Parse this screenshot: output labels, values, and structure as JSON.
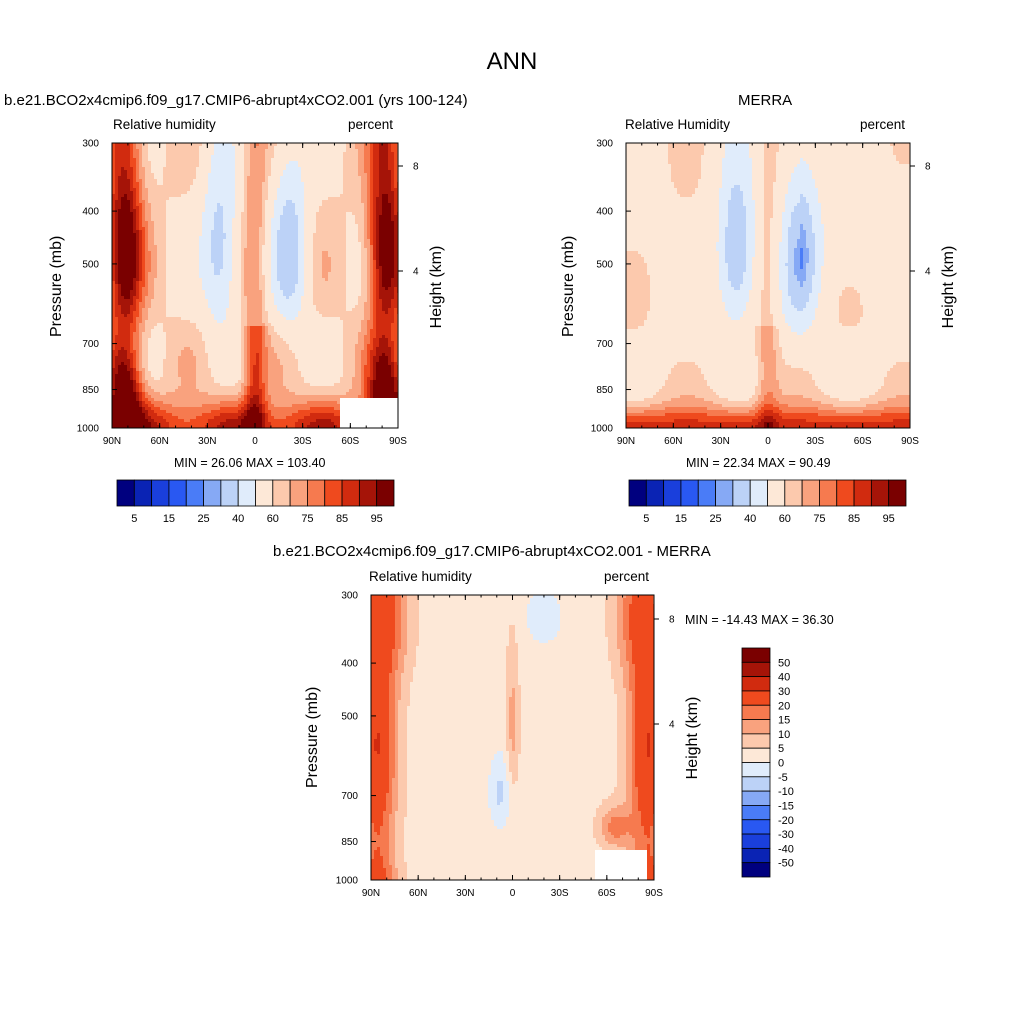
{
  "figure": {
    "title": "ANN"
  },
  "colors": {
    "levels15": [
      "#00007f",
      "#0a23b4",
      "#1a3fdc",
      "#2958f2",
      "#4a7cf7",
      "#86a9f5",
      "#bcd2f7",
      "#e0ecfb",
      "#fde8d7",
      "#fcc9ad",
      "#f9a27e",
      "#f67a4f",
      "#ef4a1e",
      "#d12b0f",
      "#a51408",
      "#7a0000"
    ],
    "levels_diff": [
      "#00007f",
      "#0a23b4",
      "#1a3fdc",
      "#2958f2",
      "#4a7cf7",
      "#86a9f5",
      "#bcd2f7",
      "#e0ecfb",
      "#fde8d7",
      "#fcc9ad",
      "#f9a27e",
      "#f67a4f",
      "#ef4a1e",
      "#d12b0f",
      "#a51408",
      "#7a0000"
    ]
  },
  "panels": [
    {
      "title": "b.e21.BCO2x4cmip6.f09_g17.CMIP6-abrupt4xCO2.001 (yrs 100-124)",
      "left_label": "Relative humidity",
      "right_label": "percent",
      "ylabel": "Pressure (mb)",
      "ylabel_right": "Height (km)",
      "min_max": "MIN =  26.06  MAX = 103.40",
      "colorbar_labels": [
        "5",
        "15",
        "25",
        "40",
        "60",
        "75",
        "85",
        "95"
      ]
    },
    {
      "title": "MERRA",
      "left_label": "Relative Humidity",
      "right_label": "percent",
      "ylabel": "Pressure (mb)",
      "ylabel_right": "Height (km)",
      "min_max": "MIN =  22.34  MAX =  90.49",
      "colorbar_labels": [
        "5",
        "15",
        "25",
        "40",
        "60",
        "75",
        "85",
        "95"
      ]
    },
    {
      "title": "b.e21.BCO2x4cmip6.f09_g17.CMIP6-abrupt4xCO2.001 - MERRA",
      "left_label": "Relative humidity",
      "right_label": "percent",
      "ylabel": "Pressure (mb)",
      "ylabel_right": "Height (km)",
      "min_max": "MIN = -14.43  MAX =  36.30",
      "colorbar_labels": [
        "50",
        "40",
        "30",
        "20",
        "15",
        "10",
        "5",
        "0",
        "-5",
        "-10",
        "-15",
        "-20",
        "-30",
        "-40",
        "-50"
      ]
    }
  ],
  "chart_data": [
    {
      "type": "heatmap",
      "title": "b.e21.BCO2x4cmip6.f09_g17.CMIP6-abrupt4xCO2.001 (yrs 100-124)",
      "x_ticks": [
        "90N",
        "60N",
        "30N",
        "0",
        "30S",
        "60S",
        "90S"
      ],
      "x_values": [
        90,
        60,
        30,
        0,
        -30,
        -60,
        -90
      ],
      "y_ticks": [
        "300",
        "400",
        "500",
        "700",
        "850",
        "1000"
      ],
      "y_values": [
        300,
        400,
        500,
        700,
        850,
        1000
      ],
      "y_scale": "log",
      "y_right_ticks": [
        "8",
        "4"
      ],
      "ylabel": "Pressure (mb)",
      "ylabel_right": "Height (km)",
      "units": "percent",
      "contour_levels": [
        5,
        10,
        15,
        20,
        25,
        30,
        40,
        50,
        60,
        65,
        70,
        75,
        80,
        85,
        90,
        95
      ],
      "min": 26.06,
      "max": 103.4
    },
    {
      "type": "heatmap",
      "title": "MERRA",
      "x_ticks": [
        "90N",
        "60N",
        "30N",
        "0",
        "30S",
        "60S",
        "90S"
      ],
      "x_values": [
        90,
        60,
        30,
        0,
        -30,
        -60,
        -90
      ],
      "y_ticks": [
        "300",
        "400",
        "500",
        "700",
        "850",
        "1000"
      ],
      "y_values": [
        300,
        400,
        500,
        700,
        850,
        1000
      ],
      "y_scale": "log",
      "y_right_ticks": [
        "8",
        "4"
      ],
      "ylabel": "Pressure (mb)",
      "ylabel_right": "Height (km)",
      "units": "percent",
      "contour_levels": [
        5,
        10,
        15,
        20,
        25,
        30,
        40,
        50,
        60,
        65,
        70,
        75,
        80,
        85,
        90,
        95
      ],
      "min": 22.34,
      "max": 90.49
    },
    {
      "type": "heatmap",
      "title": "b.e21.BCO2x4cmip6.f09_g17.CMIP6-abrupt4xCO2.001 - MERRA",
      "x_ticks": [
        "90N",
        "60N",
        "30N",
        "0",
        "30S",
        "60S",
        "90S"
      ],
      "x_values": [
        90,
        60,
        30,
        0,
        -30,
        -60,
        -90
      ],
      "y_ticks": [
        "300",
        "400",
        "500",
        "700",
        "850",
        "1000"
      ],
      "y_values": [
        300,
        400,
        500,
        700,
        850,
        1000
      ],
      "y_scale": "log",
      "y_right_ticks": [
        "8",
        "4"
      ],
      "ylabel": "Pressure (mb)",
      "ylabel_right": "Height (km)",
      "units": "percent",
      "contour_levels": [
        -50,
        -40,
        -30,
        -20,
        -15,
        -10,
        -5,
        0,
        5,
        10,
        15,
        20,
        30,
        40,
        50
      ],
      "min": -14.43,
      "max": 36.3
    }
  ]
}
